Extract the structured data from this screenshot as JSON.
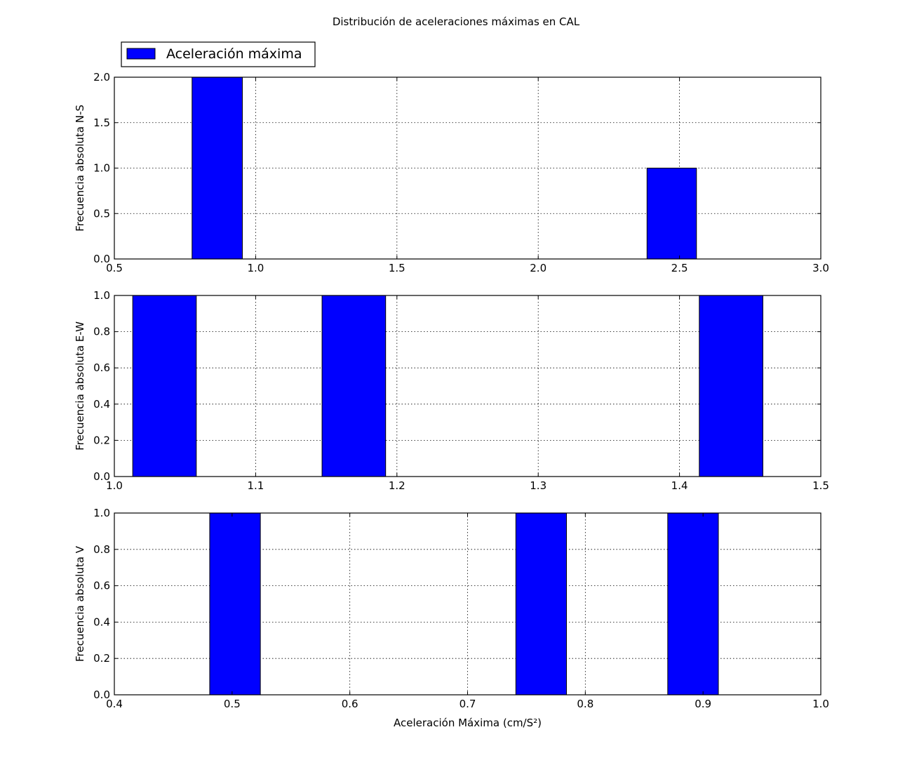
{
  "figure": {
    "title": "Distribución de aceleraciones máximas en CAL",
    "legend_label": "Aceleración máxima",
    "bar_color": "#0000ff",
    "grid": true,
    "legend_placement": "top-left above first panel"
  },
  "chart_data": [
    {
      "type": "bar",
      "name": "N-S",
      "title": "",
      "xlabel": "",
      "ylabel": "Frecuencia absoluta N-S",
      "xlim": [
        0.5,
        3.0
      ],
      "ylim": [
        0.0,
        2.0
      ],
      "xticks": [
        "0.5",
        "1.0",
        "1.5",
        "2.0",
        "2.5",
        "3.0"
      ],
      "yticks": [
        "0.0",
        "0.5",
        "1.0",
        "1.5",
        "2.0"
      ],
      "bars": [
        {
          "x0": 0.775,
          "x1": 0.953,
          "value": 2
        },
        {
          "x0": 2.385,
          "x1": 2.56,
          "value": 1
        }
      ]
    },
    {
      "type": "bar",
      "name": "E-W",
      "title": "",
      "xlabel": "",
      "ylabel": "Frecuencia absoluta E-W",
      "xlim": [
        1.0,
        1.5
      ],
      "ylim": [
        0.0,
        1.0
      ],
      "xticks": [
        "1.0",
        "1.1",
        "1.2",
        "1.3",
        "1.4",
        "1.5"
      ],
      "yticks": [
        "0.0",
        "0.2",
        "0.4",
        "0.6",
        "0.8",
        "1.0"
      ],
      "bars": [
        {
          "x0": 1.013,
          "x1": 1.058,
          "value": 1
        },
        {
          "x0": 1.147,
          "x1": 1.192,
          "value": 1
        },
        {
          "x0": 1.414,
          "x1": 1.459,
          "value": 1
        }
      ]
    },
    {
      "type": "bar",
      "name": "V",
      "title": "",
      "xlabel": "Aceleración Máxima (cm/S²)",
      "ylabel": "Frecuencia absoluta V",
      "xlim": [
        0.4,
        1.0
      ],
      "ylim": [
        0.0,
        1.0
      ],
      "xticks": [
        "0.4",
        "0.5",
        "0.6",
        "0.7",
        "0.8",
        "0.9",
        "1.0"
      ],
      "yticks": [
        "0.0",
        "0.2",
        "0.4",
        "0.6",
        "0.8",
        "1.0"
      ],
      "bars": [
        {
          "x0": 0.481,
          "x1": 0.524,
          "value": 1
        },
        {
          "x0": 0.741,
          "x1": 0.784,
          "value": 1
        },
        {
          "x0": 0.87,
          "x1": 0.913,
          "value": 1
        }
      ]
    }
  ]
}
